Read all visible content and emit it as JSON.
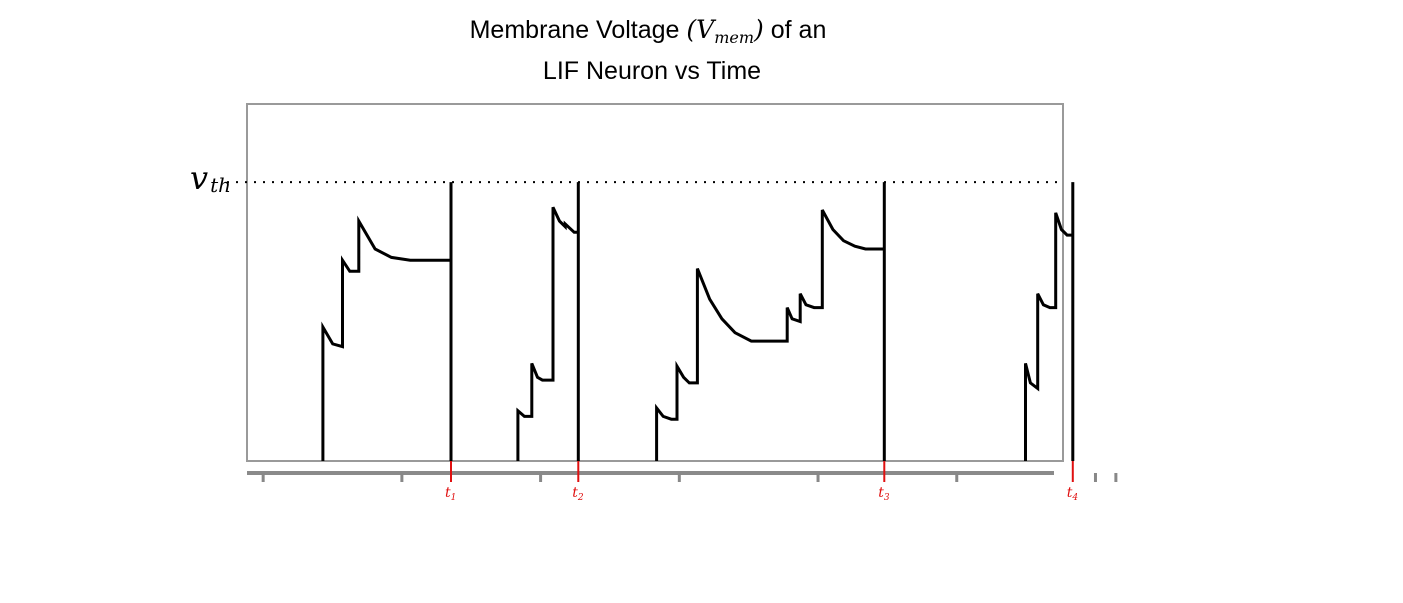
{
  "chart_data": {
    "type": "line",
    "title_line1_pre": "Membrane Voltage ",
    "title_math_open": "(",
    "title_math_v": "V",
    "title_math_sub": "mem",
    "title_math_close": ")",
    "title_line1_post": " of an",
    "title_line2": "LIF Neuron vs Time",
    "ylabel_threshold_main": "v",
    "ylabel_threshold_sub": "th",
    "threshold_value": 1.0,
    "ylim": [
      0,
      1.28
    ],
    "xlim": [
      0,
      1000
    ],
    "grid": false,
    "legend": "none",
    "line_color": "#000000",
    "threshold_style": "dotted",
    "spike_marker_color": "#e01010",
    "axis_color": "#888888",
    "spike_labels": [
      {
        "main": "t",
        "sub": "1",
        "x": 250
      },
      {
        "main": "t",
        "sub": "2",
        "x": 420
      },
      {
        "main": "t",
        "sub": "3",
        "x": 787
      },
      {
        "main": "t",
        "sub": "4",
        "x": 1018
      }
    ],
    "ticks_x": [
      10,
      180,
      350,
      520,
      690,
      860,
      1030,
      1055
    ],
    "series": [
      {
        "points": [
          [
            93,
            0
          ],
          [
            93,
            0.48
          ],
          [
            105,
            0.42
          ],
          [
            117,
            0.41
          ],
          [
            117,
            0.72
          ],
          [
            126,
            0.68
          ],
          [
            137,
            0.68
          ],
          [
            137,
            0.86
          ],
          [
            157,
            0.76
          ],
          [
            177,
            0.73
          ],
          [
            200,
            0.72
          ],
          [
            250,
            0.72
          ],
          [
            250,
            1.0
          ],
          [
            250,
            0
          ]
        ]
      },
      {
        "points": [
          [
            332,
            0
          ],
          [
            332,
            0.18
          ],
          [
            340,
            0.16
          ],
          [
            349,
            0.16
          ],
          [
            349,
            0.35
          ],
          [
            356,
            0.3
          ],
          [
            362,
            0.29
          ],
          [
            375,
            0.29
          ],
          [
            375,
            0.91
          ],
          [
            383,
            0.86
          ],
          [
            390,
            0.84
          ],
          [
            390,
            0.85
          ],
          [
            401,
            0.82
          ],
          [
            406,
            0.82
          ],
          [
            406,
            1.0
          ],
          [
            406,
            0
          ]
        ]
      },
      {
        "points": [
          [
            502,
            0
          ],
          [
            502,
            0.19
          ],
          [
            510,
            0.16
          ],
          [
            520,
            0.15
          ],
          [
            527,
            0.15
          ],
          [
            527,
            0.34
          ],
          [
            535,
            0.3
          ],
          [
            542,
            0.28
          ],
          [
            552,
            0.28
          ],
          [
            552,
            0.69
          ],
          [
            567,
            0.58
          ],
          [
            582,
            0.51
          ],
          [
            598,
            0.46
          ],
          [
            618,
            0.43
          ],
          [
            634,
            0.43
          ],
          [
            662,
            0.43
          ],
          [
            662,
            0.55
          ],
          [
            668,
            0.51
          ],
          [
            678,
            0.5
          ],
          [
            678,
            0.6
          ],
          [
            685,
            0.56
          ],
          [
            695,
            0.55
          ],
          [
            705,
            0.55
          ],
          [
            705,
            0.9
          ],
          [
            718,
            0.83
          ],
          [
            731,
            0.79
          ],
          [
            745,
            0.77
          ],
          [
            758,
            0.76
          ],
          [
            781,
            0.76
          ],
          [
            781,
            1.0
          ],
          [
            781,
            0
          ]
        ]
      },
      {
        "points": [
          [
            954,
            0
          ],
          [
            954,
            0.35
          ],
          [
            960,
            0.28
          ],
          [
            969,
            0.26
          ],
          [
            969,
            0.6
          ],
          [
            976,
            0.56
          ],
          [
            984,
            0.55
          ],
          [
            991,
            0.55
          ],
          [
            991,
            0.89
          ],
          [
            998,
            0.83
          ],
          [
            1005,
            0.81
          ],
          [
            1012,
            0.81
          ],
          [
            1012,
            1.0
          ],
          [
            1012,
            0
          ]
        ]
      }
    ]
  }
}
